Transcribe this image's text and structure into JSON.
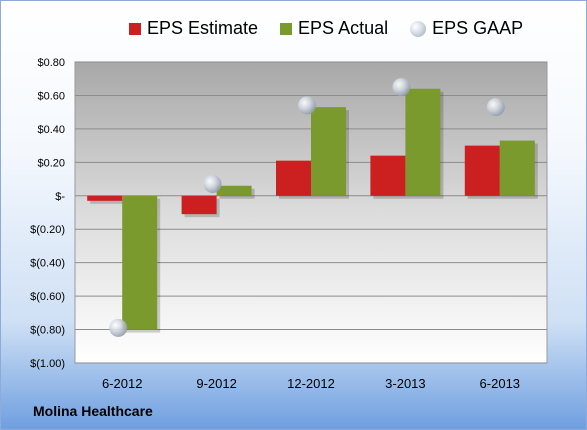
{
  "chart_data": {
    "type": "bar",
    "categories": [
      "6-2012",
      "9-2012",
      "12-2012",
      "3-2013",
      "6-2013"
    ],
    "series": [
      {
        "name": "EPS Estimate",
        "color": "#cc1f1f",
        "values": [
          -0.03,
          -0.11,
          0.21,
          0.24,
          0.3
        ]
      },
      {
        "name": "EPS Actual",
        "color": "#7a9a2e",
        "values": [
          -0.8,
          0.06,
          0.53,
          0.64,
          0.33
        ]
      },
      {
        "name": "EPS GAAP",
        "marker": "circle",
        "color": "#c8ced8",
        "values": [
          -0.79,
          0.07,
          0.54,
          0.65,
          0.53
        ]
      }
    ],
    "ylim": [
      -1.0,
      0.8
    ],
    "yticks": [
      0.8,
      0.6,
      0.4,
      0.2,
      0.0,
      -0.2,
      -0.4,
      -0.6,
      -0.8,
      -1.0
    ],
    "ytick_labels": [
      "$0.80",
      "$0.60",
      "$0.40",
      "$0.20",
      "$-",
      "$(0.20)",
      "$(0.40)",
      "$(0.60)",
      "$(0.80)",
      "$(1.00)"
    ],
    "grid": true,
    "legend_position": "top"
  },
  "footer": {
    "company": "Molina Healthcare"
  }
}
